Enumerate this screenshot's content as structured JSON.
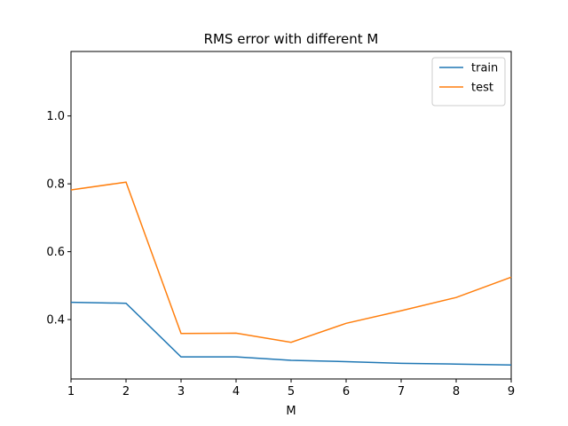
{
  "chart_data": {
    "type": "line",
    "title": "RMS error with different M",
    "xlabel": "M",
    "ylabel": "",
    "x": [
      1,
      2,
      3,
      4,
      5,
      6,
      7,
      8,
      9
    ],
    "xlim": [
      1,
      9
    ],
    "ylim": [
      0.225,
      1.19
    ],
    "xticks": [
      1,
      2,
      3,
      4,
      5,
      6,
      7,
      8,
      9
    ],
    "yticks": [
      0.4,
      0.6,
      0.8,
      1.0
    ],
    "ytick_labels": [
      "0.4",
      "0.6",
      "0.8",
      "1.0"
    ],
    "grid": false,
    "legend": "top-right",
    "series": [
      {
        "name": "train",
        "color": "#1f77b4",
        "values": [
          0.451,
          0.448,
          0.29,
          0.29,
          0.28,
          0.276,
          0.271,
          0.269,
          0.266
        ]
      },
      {
        "name": "test",
        "color": "#ff7f0e",
        "values": [
          0.782,
          0.805,
          0.359,
          0.36,
          0.333,
          0.389,
          0.426,
          0.465,
          0.525
        ]
      }
    ]
  }
}
